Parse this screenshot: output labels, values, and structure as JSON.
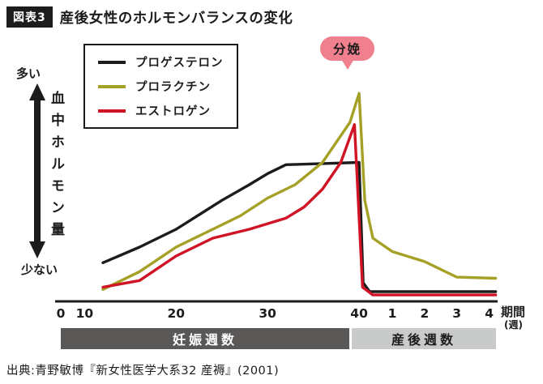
{
  "header": {
    "tag": "図表3",
    "title": "産後女性のホルモンバランスの変化"
  },
  "legend": {
    "items": [
      {
        "id": "progesterone",
        "label": "プロゲステロン",
        "color": "#1c1c1c"
      },
      {
        "id": "prolactin",
        "label": "プロラクチン",
        "color": "#a5a127"
      },
      {
        "id": "estrogen",
        "label": "エストロゲン",
        "color": "#d01325"
      }
    ]
  },
  "annotation": {
    "delivery_label": "分娩",
    "badge_color": "#f0808d"
  },
  "y_axis": {
    "top_label": "多い",
    "bottom_label": "少ない",
    "title": "血中ホルモン量"
  },
  "x_axis": {
    "pregnancy_ticks": [
      0,
      10,
      20,
      30,
      40
    ],
    "postpartum_ticks": [
      1,
      2,
      3,
      4
    ],
    "title": "期間",
    "unit": "(週)"
  },
  "phase_bars": {
    "pregnancy": {
      "label": "妊娠週数",
      "bg": "#5a5757",
      "fg": "#ffffff"
    },
    "postpartum": {
      "label": "産後週数",
      "bg": "#c9caca",
      "fg": "#1c1c1c"
    }
  },
  "source": "出典:青野敏博『新女性医学大系32 産褥』(2001)",
  "chart_data": {
    "type": "line",
    "title": "産後女性のホルモンバランスの変化",
    "xlabel": "期間(週) — 妊娠週数0〜40週、分娩=40週、産後週数1〜4週",
    "ylabel": "血中ホルモン量(相対値0〜100、少ない→多い)",
    "delivery_at_pregnancy_week": 40,
    "series": [
      {
        "id": "progesterone",
        "name": "プロゲステロン",
        "color": "#1c1c1c",
        "points": [
          [
            "preg",
            12,
            17
          ],
          [
            "preg",
            16,
            24
          ],
          [
            "preg",
            20,
            32
          ],
          [
            "preg",
            25,
            45
          ],
          [
            "preg",
            28,
            52
          ],
          [
            "preg",
            30,
            57
          ],
          [
            "preg",
            32,
            61
          ],
          [
            "preg",
            36,
            61.5
          ],
          [
            "preg",
            40,
            62
          ],
          [
            "post",
            0.1,
            8
          ],
          [
            "post",
            0.3,
            4
          ],
          [
            "post",
            1,
            4
          ],
          [
            "post",
            2,
            4
          ],
          [
            "post",
            3,
            4
          ],
          [
            "post",
            4.2,
            4
          ]
        ]
      },
      {
        "id": "prolactin",
        "name": "プロラクチン",
        "color": "#a5a127",
        "points": [
          [
            "preg",
            12,
            5
          ],
          [
            "preg",
            16,
            13
          ],
          [
            "preg",
            20,
            24
          ],
          [
            "preg",
            24,
            32
          ],
          [
            "preg",
            27,
            38
          ],
          [
            "preg",
            30,
            46
          ],
          [
            "preg",
            33,
            52
          ],
          [
            "preg",
            36,
            62
          ],
          [
            "preg",
            39,
            80
          ],
          [
            "preg",
            40,
            93
          ],
          [
            "post",
            0.15,
            45
          ],
          [
            "post",
            0.4,
            28
          ],
          [
            "post",
            1,
            22
          ],
          [
            "post",
            2,
            17.5
          ],
          [
            "post",
            3,
            10.5
          ],
          [
            "post",
            4.2,
            10
          ]
        ]
      },
      {
        "id": "estrogen",
        "name": "エストロゲン",
        "color": "#d01325",
        "points": [
          [
            "preg",
            12,
            6
          ],
          [
            "preg",
            16,
            9
          ],
          [
            "preg",
            20,
            20
          ],
          [
            "preg",
            24,
            28
          ],
          [
            "preg",
            28,
            32
          ],
          [
            "preg",
            32,
            37
          ],
          [
            "preg",
            34,
            42
          ],
          [
            "preg",
            36,
            50
          ],
          [
            "preg",
            38,
            62
          ],
          [
            "preg",
            39.5,
            79
          ],
          [
            "post",
            0.08,
            6
          ],
          [
            "post",
            0.4,
            2.5
          ],
          [
            "post",
            1,
            2.5
          ],
          [
            "post",
            2,
            2.5
          ],
          [
            "post",
            3,
            2.5
          ],
          [
            "post",
            4.2,
            2.5
          ]
        ]
      }
    ]
  }
}
